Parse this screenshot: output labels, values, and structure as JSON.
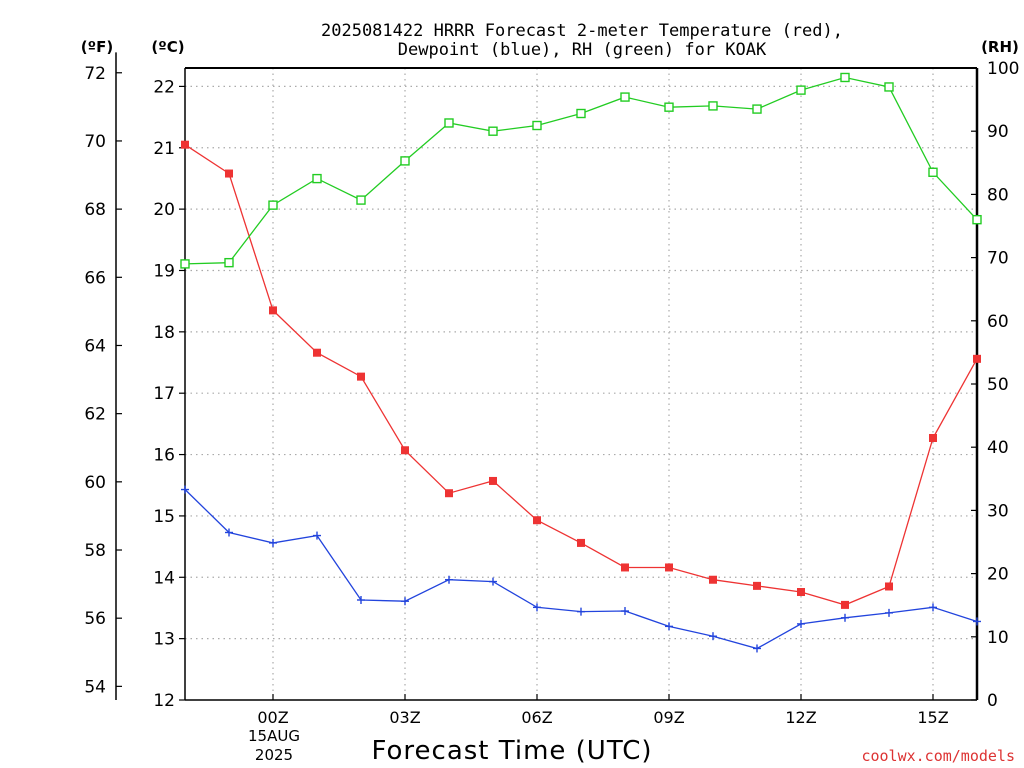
{
  "chart_data": {
    "type": "line",
    "title_lines": [
      "2025081422 HRRR Forecast 2-meter Temperature (red),",
      "Dewpoint (blue), RH (green) for KOAK"
    ],
    "xlabel": "Forecast Time (UTC)",
    "watermark": "coolwx.com/models",
    "left_unit_f": "(ºF)",
    "left_unit_c": "(ºC)",
    "right_unit": "(RH)",
    "x_hours": [
      -2,
      -1,
      0,
      1,
      2,
      3,
      4,
      5,
      6,
      7,
      8,
      9,
      10,
      11,
      12,
      13,
      14,
      15,
      16
    ],
    "xlim": [
      -2,
      16
    ],
    "x_ticks": [
      {
        "hour": 0,
        "label": "00Z"
      },
      {
        "hour": 3,
        "label": "03Z"
      },
      {
        "hour": 6,
        "label": "06Z"
      },
      {
        "hour": 9,
        "label": "09Z"
      },
      {
        "hour": 12,
        "label": "12Z"
      },
      {
        "hour": 15,
        "label": "15Z"
      }
    ],
    "date_label": [
      "15AUG",
      "2025"
    ],
    "c_axis": {
      "range": [
        12,
        22.3
      ],
      "ticks": [
        12,
        13,
        14,
        15,
        16,
        17,
        18,
        19,
        20,
        21,
        22
      ]
    },
    "f_axis": {
      "ticks": [
        54,
        56,
        58,
        60,
        62,
        64,
        66,
        68,
        70,
        72
      ]
    },
    "rh_axis": {
      "range": [
        0,
        100
      ],
      "ticks": [
        0,
        10,
        20,
        30,
        40,
        50,
        60,
        70,
        80,
        90,
        100
      ]
    },
    "series": [
      {
        "name": "Temperature",
        "axis": "c",
        "color": "#ee3333",
        "marker": "filled-square",
        "values": [
          21.05,
          20.58,
          18.35,
          17.66,
          17.27,
          16.07,
          15.37,
          15.57,
          14.93,
          14.56,
          14.16,
          14.16,
          13.96,
          13.86,
          13.76,
          13.55,
          13.85,
          16.27,
          17.56
        ]
      },
      {
        "name": "Dewpoint",
        "axis": "c",
        "color": "#2244dd",
        "marker": "plus",
        "values": [
          15.43,
          14.73,
          14.56,
          14.68,
          13.63,
          13.61,
          13.96,
          13.93,
          13.51,
          13.44,
          13.45,
          13.2,
          13.04,
          12.84,
          13.24,
          13.34,
          13.42,
          13.51,
          13.28
        ]
      },
      {
        "name": "RH",
        "axis": "rh",
        "color": "#22cc22",
        "marker": "open-square",
        "values": [
          69.0,
          69.2,
          78.3,
          82.5,
          79.1,
          85.3,
          91.3,
          90.0,
          90.9,
          92.8,
          95.4,
          93.8,
          94.0,
          93.5,
          96.5,
          98.5,
          97.0,
          83.5,
          76.0
        ]
      }
    ]
  }
}
